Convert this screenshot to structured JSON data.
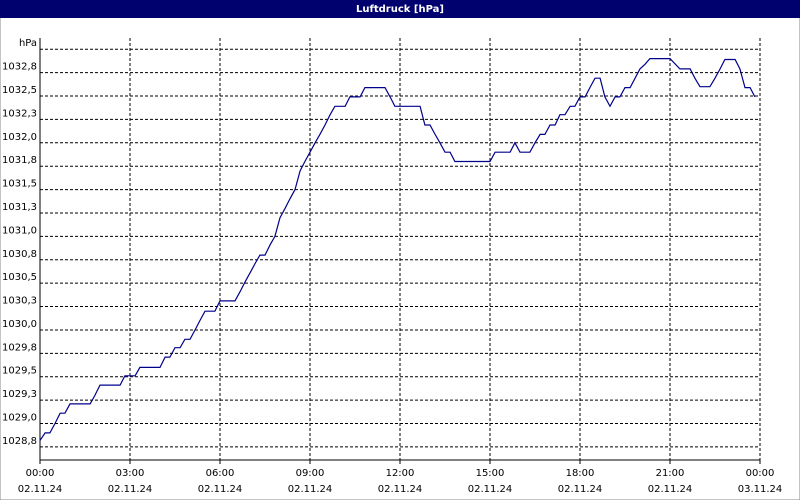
{
  "chart_data": {
    "type": "line",
    "title": "Luftdruck [hPa]",
    "series": [
      {
        "name": "Luftdruck",
        "color": "#00008b",
        "x": [
          0,
          0.17,
          0.33,
          0.5,
          0.67,
          0.83,
          1,
          1.67,
          1.83,
          2,
          2.67,
          2.83,
          3.17,
          3.33,
          4,
          4.17,
          4.33,
          4.5,
          4.67,
          4.83,
          5,
          5.17,
          5.33,
          5.5,
          5.83,
          6,
          6.5,
          6.67,
          6.83,
          7,
          7.17,
          7.33,
          7.5,
          7.67,
          7.83,
          8,
          8.17,
          8.33,
          8.5,
          8.67,
          8.83,
          9,
          9.17,
          9.33,
          9.5,
          9.67,
          9.83,
          10.17,
          10.33,
          10.67,
          10.83,
          11.5,
          11.67,
          11.83,
          12.67,
          12.83,
          13,
          13.17,
          13.33,
          13.5,
          13.67,
          13.83,
          15,
          15.17,
          15.67,
          15.83,
          16,
          16.33,
          16.5,
          16.67,
          16.83,
          17,
          17.17,
          17.33,
          17.5,
          17.67,
          17.83,
          18,
          18.17,
          18.33,
          18.5,
          18.67,
          18.83,
          19,
          19.17,
          19.33,
          19.5,
          19.67,
          20,
          20.17,
          20.33,
          21,
          21.33,
          21.67,
          21.83,
          22,
          22.33,
          22.5,
          22.67,
          22.83,
          23.17,
          23.33,
          23.5,
          23.67,
          23.83
        ],
        "values": [
          1028.82,
          1028.9,
          1028.9,
          1029.0,
          1029.11,
          1029.11,
          1029.21,
          1029.21,
          1029.3,
          1029.41,
          1029.41,
          1029.51,
          1029.51,
          1029.6,
          1029.6,
          1029.71,
          1029.71,
          1029.81,
          1029.81,
          1029.9,
          1029.9,
          1030.0,
          1030.1,
          1030.2,
          1030.2,
          1030.31,
          1030.31,
          1030.41,
          1030.51,
          1030.61,
          1030.71,
          1030.8,
          1030.8,
          1030.91,
          1031.0,
          1031.2,
          1031.3,
          1031.4,
          1031.5,
          1031.7,
          1031.8,
          1031.9,
          1032.0,
          1032.09,
          1032.19,
          1032.3,
          1032.39,
          1032.39,
          1032.49,
          1032.49,
          1032.59,
          1032.59,
          1032.49,
          1032.39,
          1032.39,
          1032.19,
          1032.19,
          1032.09,
          1032.0,
          1031.9,
          1031.9,
          1031.8,
          1031.8,
          1031.9,
          1031.9,
          1032.0,
          1031.9,
          1031.9,
          1032.0,
          1032.09,
          1032.09,
          1032.19,
          1032.19,
          1032.3,
          1032.3,
          1032.39,
          1032.39,
          1032.49,
          1032.49,
          1032.59,
          1032.69,
          1032.69,
          1032.49,
          1032.39,
          1032.49,
          1032.49,
          1032.59,
          1032.59,
          1032.79,
          1032.84,
          1032.9,
          1032.9,
          1032.79,
          1032.79,
          1032.69,
          1032.6,
          1032.6,
          1032.69,
          1032.79,
          1032.89,
          1032.89,
          1032.79,
          1032.59,
          1032.59,
          1032.49
        ]
      }
    ],
    "xlim": [
      0,
      24
    ],
    "xticks": [
      {
        "value": 0,
        "label": "00:00"
      },
      {
        "value": 3,
        "label": "03:00"
      },
      {
        "value": 6,
        "label": "06:00"
      },
      {
        "value": 9,
        "label": "09:00"
      },
      {
        "value": 12,
        "label": "12:00"
      },
      {
        "value": 15,
        "label": "15:00"
      },
      {
        "value": 18,
        "label": "18:00"
      },
      {
        "value": 21,
        "label": "21:00"
      },
      {
        "value": 24,
        "label": "00:00"
      }
    ],
    "xtick_dates": [
      "02.11.24",
      "02.11.24",
      "02.11.24",
      "02.11.24",
      "02.11.24",
      "02.11.24",
      "02.11.24",
      "02.11.24",
      "03.11.24"
    ],
    "ylim": [
      1028.61,
      1033.12
    ],
    "yticks": [
      {
        "value": 1028.75,
        "label": "1028,8"
      },
      {
        "value": 1029,
        "label": "1029,0"
      },
      {
        "value": 1029.25,
        "label": "1029,3"
      },
      {
        "value": 1029.5,
        "label": "1029,5"
      },
      {
        "value": 1029.75,
        "label": "1029,8"
      },
      {
        "value": 1030,
        "label": "1030,0"
      },
      {
        "value": 1030.25,
        "label": "1030,3"
      },
      {
        "value": 1030.5,
        "label": "1030,5"
      },
      {
        "value": 1030.75,
        "label": "1030,8"
      },
      {
        "value": 1031,
        "label": "1031,0"
      },
      {
        "value": 1031.25,
        "label": "1031,3"
      },
      {
        "value": 1031.5,
        "label": "1031,5"
      },
      {
        "value": 1031.75,
        "label": "1031,8"
      },
      {
        "value": 1032,
        "label": "1032,0"
      },
      {
        "value": 1032.25,
        "label": "1032,3"
      },
      {
        "value": 1032.5,
        "label": "1032,5"
      },
      {
        "value": 1032.75,
        "label": "1032,8"
      },
      {
        "value": 1033,
        "label": "hPa"
      }
    ],
    "grid": true
  }
}
